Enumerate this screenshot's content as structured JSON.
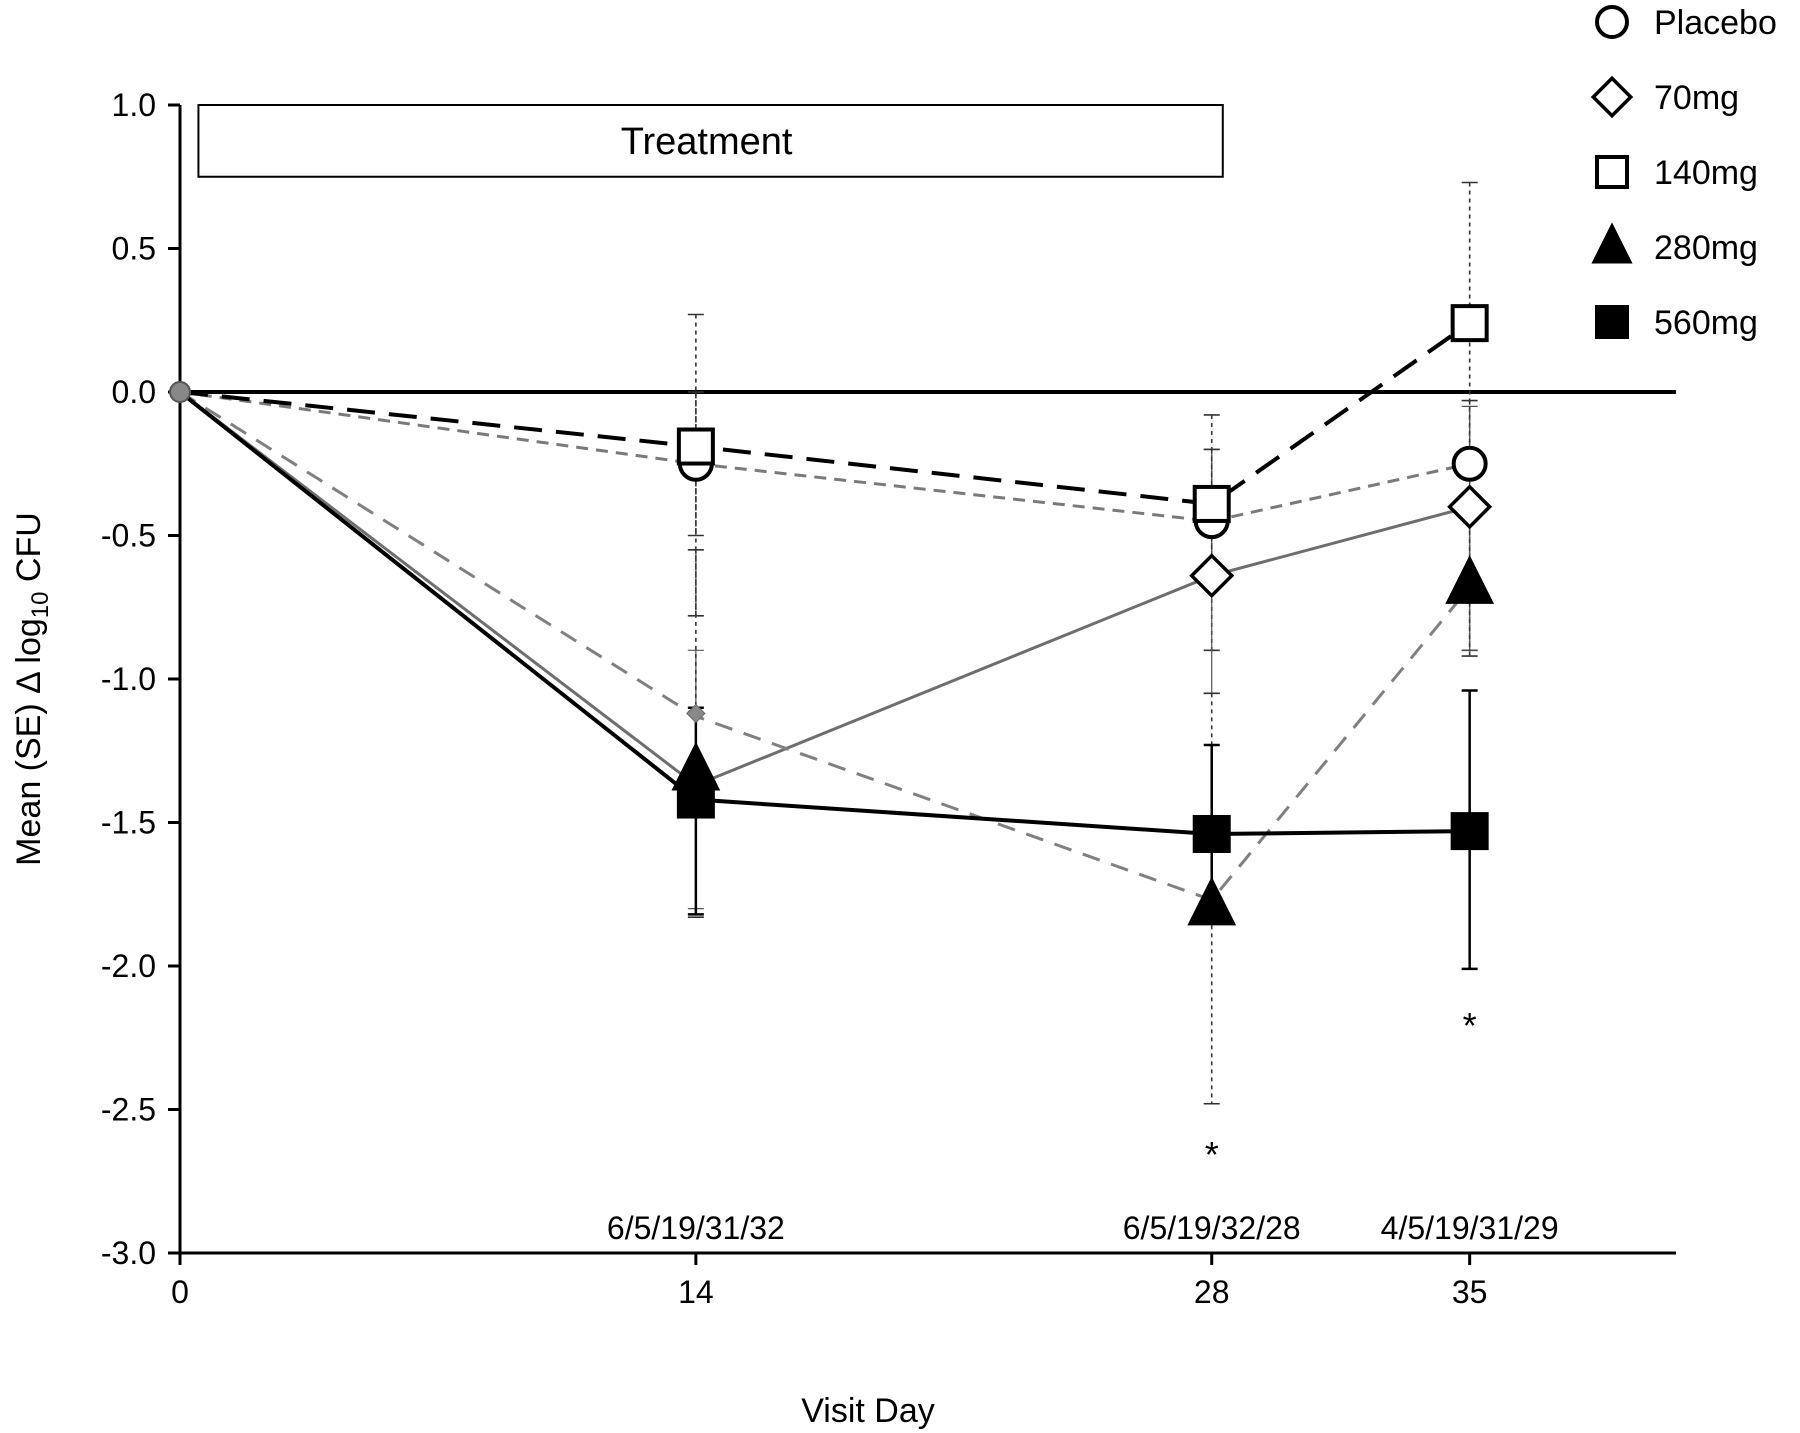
{
  "chart_data": {
    "type": "line",
    "title": "",
    "xlabel": "Visit Day",
    "ylabel_main": "Mean (SE) Δ log",
    "ylabel_sub": "10",
    "ylabel_tail": " CFU",
    "x": [
      0,
      14,
      28,
      35
    ],
    "x_ticks": [
      "0",
      "14",
      "28",
      "35"
    ],
    "xlim": [
      0,
      40.6
    ],
    "ylim": [
      -3.0,
      1.0
    ],
    "y_ticks": [
      "1.0",
      "0.5",
      "0.0",
      "-0.5",
      "-1.0",
      "-1.5",
      "-2.0",
      "-2.5",
      "-3.0"
    ],
    "y_tick_values": [
      1.0,
      0.5,
      0.0,
      -0.5,
      -1.0,
      -1.5,
      -2.0,
      -2.5,
      -3.0
    ],
    "reference_line_y": 0.0,
    "treatment_band": {
      "label": "Treatment",
      "x_start": 0.5,
      "x_end": 28.3,
      "y_top": 1.0,
      "y_bottom": 0.75
    },
    "n_labels": [
      {
        "x": 14,
        "text": "6/5/19/31/32"
      },
      {
        "x": 28,
        "text": "6/5/19/32/28"
      },
      {
        "x": 35,
        "text": "4/5/19/31/29"
      }
    ],
    "significance": [
      {
        "x": 28,
        "y": -2.7,
        "text": "*"
      },
      {
        "x": 35,
        "y": -2.25,
        "text": "*"
      }
    ],
    "legend_position": "top-right",
    "series": [
      {
        "name": "Placebo",
        "marker": "circle",
        "fill": "#ffffff",
        "line_color": "#7a7a7a",
        "dash": "12,8",
        "line_width": 3,
        "values": [
          0.0,
          -0.25,
          -0.45,
          -0.25
        ],
        "err_low": [
          0,
          -0.78,
          -0.9,
          -0.9
        ],
        "err_high": [
          0,
          0.27,
          -0.08,
          -0.03
        ],
        "err_style": "dotted"
      },
      {
        "name": "70mg",
        "marker": "diamond",
        "fill": "#ffffff",
        "line_color": "#6e6e6e",
        "dash": "",
        "line_width": 3,
        "values": [
          0.0,
          -1.37,
          -0.64,
          -0.4
        ],
        "err_low": [
          0,
          -1.8,
          -1.05,
          -0.9
        ],
        "err_high": [
          0,
          -0.9,
          -0.2,
          -0.05
        ],
        "err_style": "solid-thin"
      },
      {
        "name": "140mg",
        "marker": "square",
        "fill": "#ffffff",
        "line_color": "#000000",
        "dash": "28,14",
        "line_width": 4,
        "values": [
          0.0,
          -0.19,
          -0.39,
          0.24
        ],
        "err_low": [
          0,
          -0.5,
          -0.6,
          -0.25
        ],
        "err_high": [
          0,
          0.0,
          -0.2,
          0.73
        ],
        "err_style": "dotted"
      },
      {
        "name": "280mg",
        "marker": "triangle",
        "fill": "#000000",
        "line_color": "#808080",
        "dash": "18,12",
        "line_width": 3,
        "values": [
          0.0,
          -1.13,
          -1.77,
          -0.68
        ],
        "err_low": [
          0,
          -1.83,
          -2.48,
          -0.92
        ],
        "err_high": [
          0,
          -0.55,
          -1.05,
          -0.43
        ],
        "err_style": "dotted"
      },
      {
        "name": "560mg",
        "marker": "square",
        "fill": "#000000",
        "line_color": "#000000",
        "dash": "",
        "line_width": 4,
        "values": [
          0.0,
          -1.42,
          -1.54,
          -1.53
        ],
        "err_low": [
          0,
          -1.82,
          -1.85,
          -2.01
        ],
        "err_high": [
          0,
          -1.1,
          -1.23,
          -1.04
        ],
        "err_style": "solid"
      }
    ],
    "markers_280mg_overlay": [
      {
        "x": 14,
        "y": -1.32
      },
      {
        "x": 28,
        "y": -1.79
      },
      {
        "x": 35,
        "y": -0.67
      }
    ],
    "marker_70mg_small_at_14": {
      "x": 14,
      "y": -1.12
    }
  }
}
